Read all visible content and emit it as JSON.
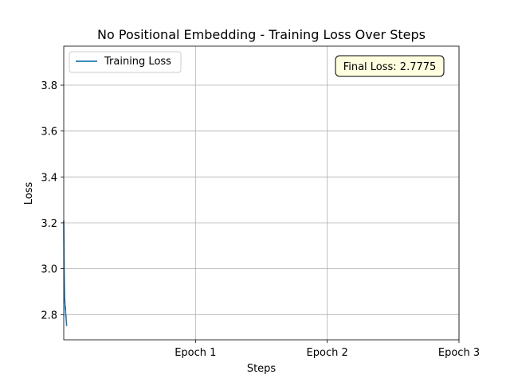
{
  "chart_data": {
    "type": "line",
    "title": "No Positional Embedding - Training Loss Over Steps",
    "xlabel": "Steps",
    "ylabel": "Loss",
    "xlim": [
      0,
      3
    ],
    "ylim": [
      2.69,
      3.97
    ],
    "x_ticks": [
      {
        "value": 1,
        "label": "Epoch 1"
      },
      {
        "value": 2,
        "label": "Epoch 2"
      },
      {
        "value": 3,
        "label": "Epoch 3"
      }
    ],
    "y_ticks": [
      {
        "value": 2.8,
        "label": "2.8"
      },
      {
        "value": 3.0,
        "label": "3.0"
      },
      {
        "value": 3.2,
        "label": "3.2"
      },
      {
        "value": 3.4,
        "label": "3.4"
      },
      {
        "value": 3.6,
        "label": "3.6"
      },
      {
        "value": 3.8,
        "label": "3.8"
      }
    ],
    "grid": true,
    "legend_position": "top-left",
    "series": [
      {
        "name": "Training Loss",
        "color": "#1f77b4",
        "x": [
          0.0,
          0.001,
          0.002,
          0.003,
          0.004,
          0.005,
          0.006,
          0.007,
          0.008,
          0.009,
          0.01,
          0.011,
          0.012,
          0.013,
          0.014,
          0.015,
          0.016,
          0.017,
          0.018,
          0.019,
          0.02,
          0.021,
          0.022
        ],
        "y": [
          3.21,
          3.14,
          3.06,
          3.0,
          2.95,
          2.92,
          2.89,
          2.87,
          2.86,
          2.85,
          2.84,
          2.83,
          2.82,
          2.835,
          2.81,
          2.8,
          2.79,
          2.8,
          2.78,
          2.775,
          2.77,
          2.76,
          2.75
        ]
      }
    ],
    "annotation": "Final Loss: 2.7775"
  },
  "colors": {
    "line": "#1f77b4",
    "grid": "#b0b0b0",
    "annotation_bg": "#ffffe0"
  }
}
